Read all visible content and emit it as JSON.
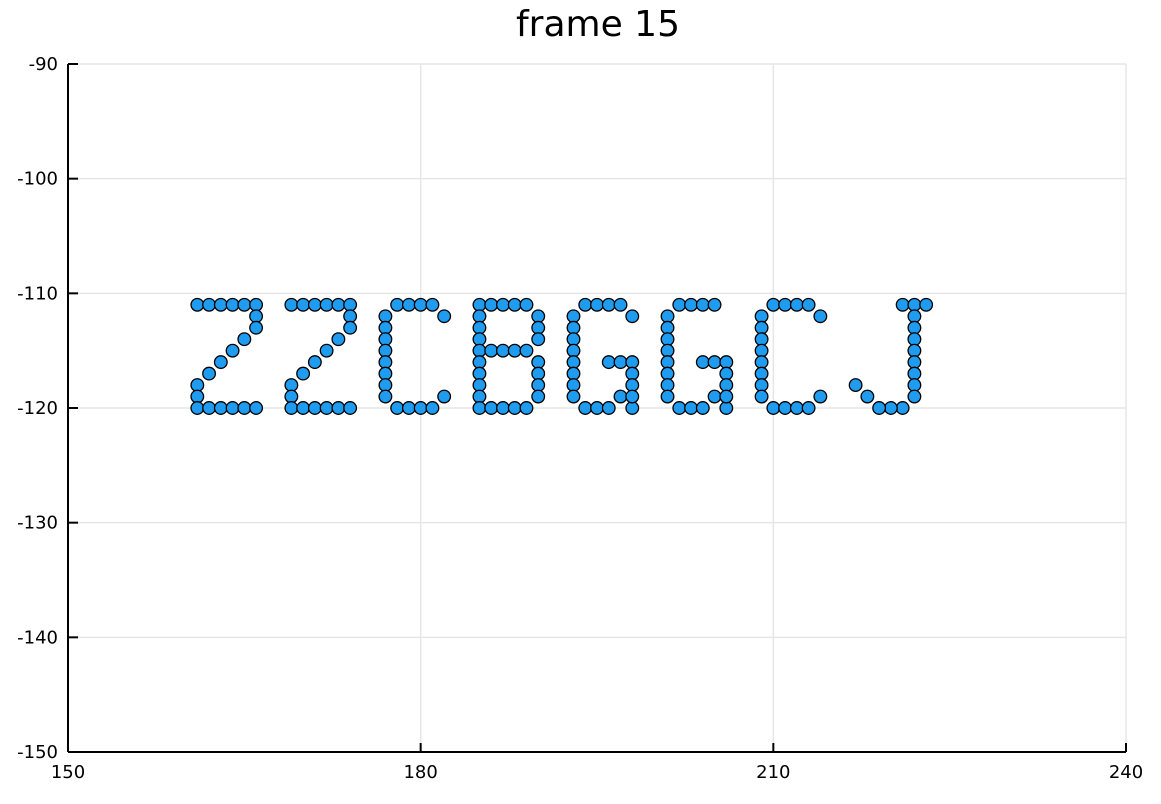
{
  "chart_data": {
    "type": "scatter",
    "title": "frame 15",
    "xlabel": "",
    "ylabel": "",
    "xlim": [
      150,
      240
    ],
    "ylim": [
      -150,
      -90
    ],
    "x_ticks": [
      "150",
      "180",
      "210",
      "240"
    ],
    "y_ticks": [
      "-90",
      "-100",
      "-110",
      "-120",
      "-130",
      "-140",
      "-150"
    ],
    "grid": true,
    "marker_color": "#1f9cf0",
    "marker_edge_color": "#000000",
    "text_shown_by_points": "ZZCBGGCJ",
    "points": [
      [
        161,
        -111
      ],
      [
        162,
        -111
      ],
      [
        163,
        -111
      ],
      [
        164,
        -111
      ],
      [
        165,
        -111
      ],
      [
        166,
        -111
      ],
      [
        166,
        -112
      ],
      [
        166,
        -113
      ],
      [
        165,
        -114
      ],
      [
        164,
        -115
      ],
      [
        163,
        -116
      ],
      [
        162,
        -117
      ],
      [
        161,
        -118
      ],
      [
        161,
        -119
      ],
      [
        161,
        -120
      ],
      [
        162,
        -120
      ],
      [
        163,
        -120
      ],
      [
        164,
        -120
      ],
      [
        165,
        -120
      ],
      [
        166,
        -120
      ],
      [
        169,
        -111
      ],
      [
        170,
        -111
      ],
      [
        171,
        -111
      ],
      [
        172,
        -111
      ],
      [
        173,
        -111
      ],
      [
        174,
        -111
      ],
      [
        174,
        -112
      ],
      [
        174,
        -113
      ],
      [
        173,
        -114
      ],
      [
        172,
        -115
      ],
      [
        171,
        -116
      ],
      [
        170,
        -117
      ],
      [
        169,
        -118
      ],
      [
        169,
        -119
      ],
      [
        169,
        -120
      ],
      [
        170,
        -120
      ],
      [
        171,
        -120
      ],
      [
        172,
        -120
      ],
      [
        173,
        -120
      ],
      [
        174,
        -120
      ],
      [
        178,
        -111
      ],
      [
        179,
        -111
      ],
      [
        180,
        -111
      ],
      [
        181,
        -111
      ],
      [
        182,
        -112
      ],
      [
        177,
        -112
      ],
      [
        177,
        -113
      ],
      [
        177,
        -114
      ],
      [
        177,
        -115
      ],
      [
        177,
        -116
      ],
      [
        177,
        -117
      ],
      [
        177,
        -118
      ],
      [
        177,
        -119
      ],
      [
        178,
        -120
      ],
      [
        179,
        -120
      ],
      [
        180,
        -120
      ],
      [
        181,
        -120
      ],
      [
        182,
        -119
      ],
      [
        185,
        -111
      ],
      [
        186,
        -111
      ],
      [
        187,
        -111
      ],
      [
        188,
        -111
      ],
      [
        189,
        -111
      ],
      [
        190,
        -112
      ],
      [
        190,
        -113
      ],
      [
        190,
        -114
      ],
      [
        185,
        -112
      ],
      [
        185,
        -113
      ],
      [
        185,
        -114
      ],
      [
        185,
        -115
      ],
      [
        186,
        -115
      ],
      [
        187,
        -115
      ],
      [
        188,
        -115
      ],
      [
        189,
        -115
      ],
      [
        190,
        -116
      ],
      [
        190,
        -117
      ],
      [
        190,
        -118
      ],
      [
        190,
        -119
      ],
      [
        185,
        -116
      ],
      [
        185,
        -117
      ],
      [
        185,
        -118
      ],
      [
        185,
        -119
      ],
      [
        185,
        -120
      ],
      [
        186,
        -120
      ],
      [
        187,
        -120
      ],
      [
        188,
        -120
      ],
      [
        189,
        -120
      ],
      [
        194,
        -111
      ],
      [
        195,
        -111
      ],
      [
        196,
        -111
      ],
      [
        197,
        -111
      ],
      [
        198,
        -112
      ],
      [
        193,
        -112
      ],
      [
        193,
        -113
      ],
      [
        193,
        -114
      ],
      [
        193,
        -115
      ],
      [
        193,
        -116
      ],
      [
        193,
        -117
      ],
      [
        193,
        -118
      ],
      [
        193,
        -119
      ],
      [
        194,
        -120
      ],
      [
        195,
        -120
      ],
      [
        196,
        -120
      ],
      [
        197,
        -119
      ],
      [
        198,
        -120
      ],
      [
        196,
        -116
      ],
      [
        197,
        -116
      ],
      [
        198,
        -116
      ],
      [
        198,
        -117
      ],
      [
        198,
        -118
      ],
      [
        198,
        -119
      ],
      [
        202,
        -111
      ],
      [
        203,
        -111
      ],
      [
        204,
        -111
      ],
      [
        205,
        -111
      ],
      [
        201,
        -112
      ],
      [
        201,
        -113
      ],
      [
        201,
        -114
      ],
      [
        201,
        -115
      ],
      [
        201,
        -116
      ],
      [
        201,
        -117
      ],
      [
        201,
        -118
      ],
      [
        201,
        -119
      ],
      [
        202,
        -120
      ],
      [
        203,
        -120
      ],
      [
        204,
        -120
      ],
      [
        205,
        -119
      ],
      [
        206,
        -120
      ],
      [
        204,
        -116
      ],
      [
        205,
        -116
      ],
      [
        206,
        -116
      ],
      [
        206,
        -117
      ],
      [
        206,
        -118
      ],
      [
        206,
        -119
      ],
      [
        210,
        -111
      ],
      [
        211,
        -111
      ],
      [
        212,
        -111
      ],
      [
        213,
        -111
      ],
      [
        214,
        -112
      ],
      [
        209,
        -112
      ],
      [
        209,
        -113
      ],
      [
        209,
        -114
      ],
      [
        209,
        -115
      ],
      [
        209,
        -116
      ],
      [
        209,
        -117
      ],
      [
        209,
        -118
      ],
      [
        209,
        -119
      ],
      [
        210,
        -120
      ],
      [
        211,
        -120
      ],
      [
        212,
        -120
      ],
      [
        213,
        -120
      ],
      [
        214,
        -119
      ],
      [
        221,
        -111
      ],
      [
        222,
        -111
      ],
      [
        223,
        -111
      ],
      [
        222,
        -112
      ],
      [
        222,
        -113
      ],
      [
        222,
        -114
      ],
      [
        222,
        -115
      ],
      [
        222,
        -116
      ],
      [
        222,
        -117
      ],
      [
        222,
        -118
      ],
      [
        222,
        -119
      ],
      [
        221,
        -120
      ],
      [
        220,
        -120
      ],
      [
        219,
        -120
      ],
      [
        218,
        -119
      ],
      [
        217,
        -118
      ]
    ]
  }
}
